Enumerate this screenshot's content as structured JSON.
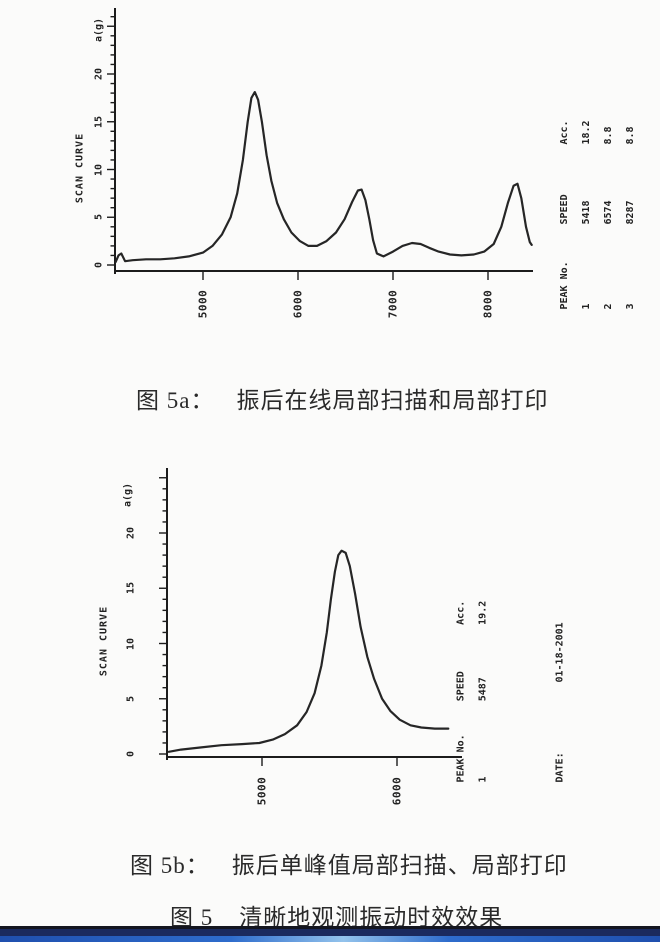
{
  "page": {
    "background": "#fbfbfa"
  },
  "colors": {
    "ink": "#1f1f1f",
    "curve": "#262626",
    "bar_line": "#14161f",
    "bar_dark": "#1b2a5e",
    "bar_bright": "#2e6ccc",
    "bar_highlight": "#93c3ec"
  },
  "figure": {
    "caption_5a": {
      "prefix": "图 5a：",
      "text": "振后在线局部扫描和局部打印"
    },
    "caption_5b": {
      "prefix": "图 5b：",
      "text": "振后单峰值局部扫描、局部打印"
    },
    "caption_5": {
      "prefix": "图 5",
      "text": "清晰地观测振动时效效果"
    }
  },
  "chart_data": [
    {
      "id": "scan-5a",
      "type": "line",
      "title": "SCAN CURVE",
      "y_unit": "a(g)",
      "yticks": [
        0,
        5,
        10,
        15,
        20
      ],
      "xticks": [
        5000,
        6000,
        7000,
        8000
      ],
      "xlim": [
        4070,
        8460
      ],
      "ylim": [
        0,
        20
      ],
      "grid": false,
      "series": [
        {
          "name": "scan curve",
          "points": [
            [
              4080,
              0.3
            ],
            [
              4110,
              1.0
            ],
            [
              4140,
              1.2
            ],
            [
              4180,
              0.4
            ],
            [
              4260,
              0.5
            ],
            [
              4400,
              0.6
            ],
            [
              4550,
              0.6
            ],
            [
              4700,
              0.7
            ],
            [
              4850,
              0.9
            ],
            [
              5000,
              1.3
            ],
            [
              5100,
              2.0
            ],
            [
              5200,
              3.2
            ],
            [
              5290,
              5.0
            ],
            [
              5360,
              7.5
            ],
            [
              5420,
              11.0
            ],
            [
              5470,
              15.0
            ],
            [
              5510,
              17.5
            ],
            [
              5545,
              18.1
            ],
            [
              5580,
              17.3
            ],
            [
              5620,
              15.0
            ],
            [
              5670,
              11.5
            ],
            [
              5720,
              8.8
            ],
            [
              5780,
              6.5
            ],
            [
              5850,
              4.8
            ],
            [
              5930,
              3.4
            ],
            [
              6020,
              2.5
            ],
            [
              6110,
              2.0
            ],
            [
              6200,
              2.0
            ],
            [
              6300,
              2.5
            ],
            [
              6400,
              3.4
            ],
            [
              6490,
              4.8
            ],
            [
              6570,
              6.6
            ],
            [
              6630,
              7.8
            ],
            [
              6670,
              7.9
            ],
            [
              6710,
              6.8
            ],
            [
              6750,
              4.8
            ],
            [
              6790,
              2.6
            ],
            [
              6830,
              1.2
            ],
            [
              6900,
              0.9
            ],
            [
              7000,
              1.4
            ],
            [
              7100,
              2.0
            ],
            [
              7200,
              2.3
            ],
            [
              7290,
              2.2
            ],
            [
              7380,
              1.8
            ],
            [
              7480,
              1.4
            ],
            [
              7600,
              1.1
            ],
            [
              7720,
              1.0
            ],
            [
              7850,
              1.1
            ],
            [
              7960,
              1.4
            ],
            [
              8060,
              2.2
            ],
            [
              8140,
              4.0
            ],
            [
              8210,
              6.5
            ],
            [
              8270,
              8.3
            ],
            [
              8310,
              8.5
            ],
            [
              8350,
              7.0
            ],
            [
              8400,
              4.0
            ],
            [
              8440,
              2.4
            ],
            [
              8460,
              2.1
            ]
          ]
        }
      ],
      "peak_table": {
        "headers": [
          "PEAK No.",
          "SPEED",
          "Acc."
        ],
        "rows": [
          [
            "1",
            "5418",
            "18.2"
          ],
          [
            "2",
            "6574",
            "8.8"
          ],
          [
            "3",
            "8287",
            "8.8"
          ]
        ]
      }
    },
    {
      "id": "scan-5b",
      "type": "line",
      "title": "SCAN CURVE",
      "y_unit": "a(g)",
      "yticks": [
        0,
        5,
        10,
        15,
        20
      ],
      "xticks": [
        5000,
        6000
      ],
      "xlim": [
        4300,
        6470
      ],
      "ylim": [
        0,
        20
      ],
      "grid": false,
      "series": [
        {
          "name": "scan curve",
          "points": [
            [
              4310,
              0.2
            ],
            [
              4400,
              0.4
            ],
            [
              4550,
              0.6
            ],
            [
              4700,
              0.8
            ],
            [
              4850,
              0.9
            ],
            [
              4980,
              1.0
            ],
            [
              5080,
              1.3
            ],
            [
              5170,
              1.8
            ],
            [
              5260,
              2.6
            ],
            [
              5330,
              3.8
            ],
            [
              5390,
              5.5
            ],
            [
              5440,
              8.0
            ],
            [
              5480,
              11.0
            ],
            [
              5510,
              14.0
            ],
            [
              5540,
              16.5
            ],
            [
              5565,
              18.0
            ],
            [
              5590,
              18.4
            ],
            [
              5620,
              18.2
            ],
            [
              5650,
              17.0
            ],
            [
              5690,
              14.5
            ],
            [
              5730,
              11.5
            ],
            [
              5780,
              8.8
            ],
            [
              5830,
              6.8
            ],
            [
              5890,
              5.0
            ],
            [
              5950,
              3.9
            ],
            [
              6020,
              3.1
            ],
            [
              6100,
              2.6
            ],
            [
              6180,
              2.4
            ],
            [
              6280,
              2.3
            ],
            [
              6380,
              2.3
            ]
          ]
        }
      ],
      "peak_table": {
        "headers": [
          "PEAK No.",
          "SPEED",
          "Acc."
        ],
        "rows": [
          [
            "1",
            "5487",
            "19.2"
          ]
        ]
      },
      "date_label": "DATE:",
      "date_value": "01-18-2001"
    }
  ]
}
